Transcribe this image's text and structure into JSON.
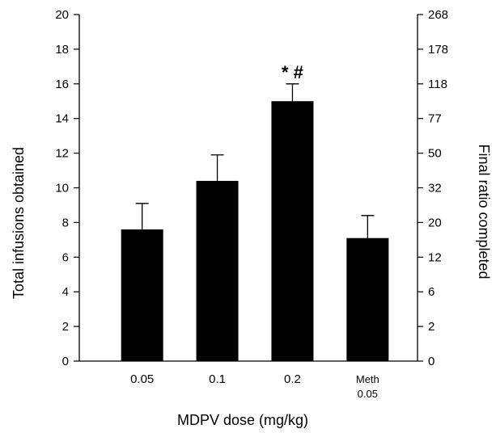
{
  "chart_data": {
    "type": "bar",
    "categories": [
      [
        "0.05"
      ],
      [
        "0.1"
      ],
      [
        "0.2"
      ],
      [
        "Meth",
        "0.05"
      ]
    ],
    "values": [
      7.6,
      10.4,
      15.0,
      7.1
    ],
    "errors": [
      1.5,
      1.5,
      1.0,
      1.3
    ],
    "annotations": [
      "",
      "",
      "* #",
      ""
    ],
    "xlabel": "MDPV dose (mg/kg)",
    "ylabel": "Total infusions obtained",
    "ylim": [
      0,
      20
    ],
    "yticks": [
      0,
      2,
      4,
      6,
      8,
      10,
      12,
      14,
      16,
      18,
      20
    ],
    "y2label": "Final ratio completed",
    "y2ticks": [
      "0",
      "2",
      "6",
      "12",
      "20",
      "32",
      "50",
      "77",
      "118",
      "178",
      "268"
    ],
    "grid": false,
    "bar_color": "#000000"
  }
}
